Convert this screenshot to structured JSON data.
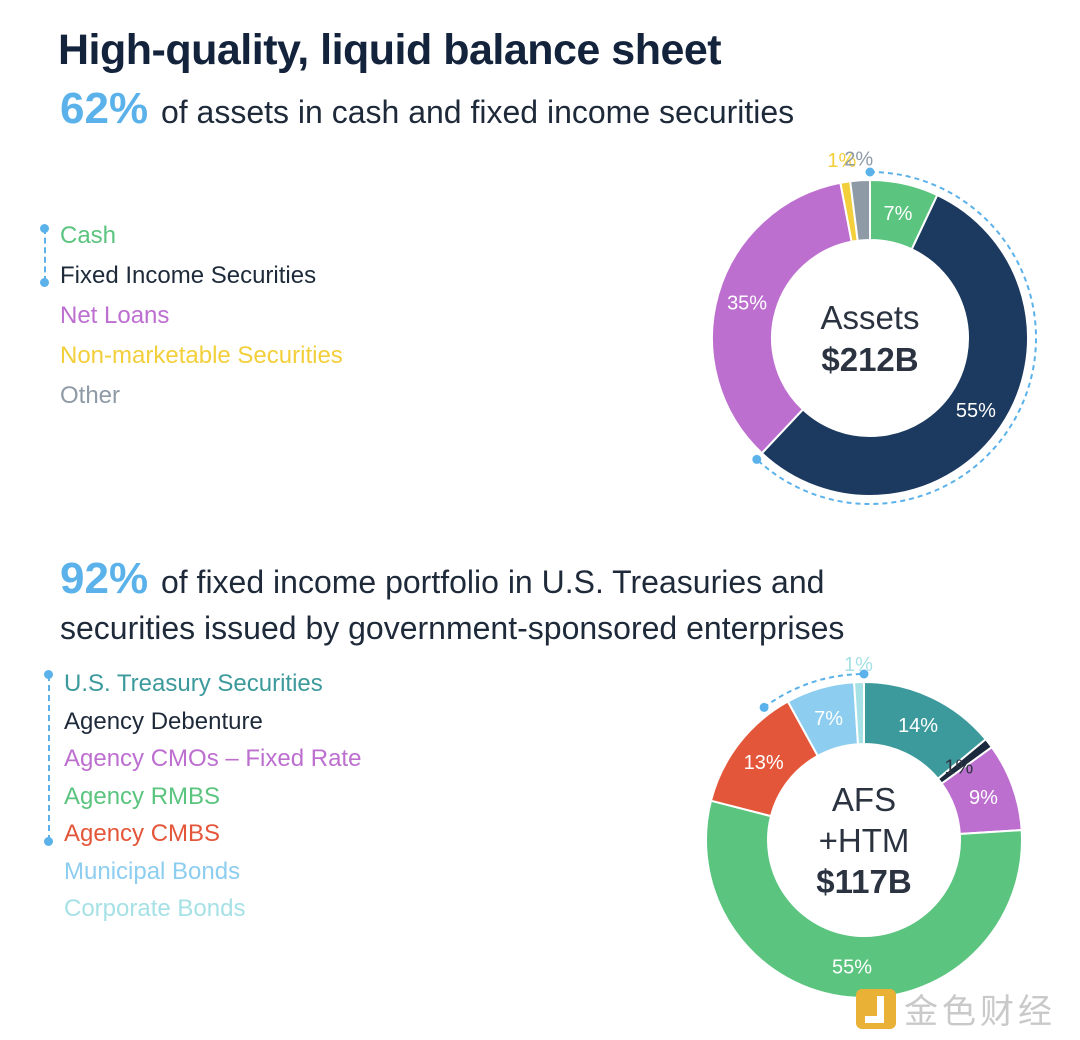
{
  "title": "High-quality, liquid balance sheet",
  "section1": {
    "highlight": "62%",
    "text": "of assets in cash and fixed income securities"
  },
  "section2": {
    "highlight": "92%",
    "text_line1": "of fixed income portfolio in U.S. Treasuries and",
    "text_line2": "securities issued by government-sponsored enterprises"
  },
  "watermark": {
    "text": "金色财经",
    "icon": "jinse-logo-icon"
  },
  "chart_data": [
    {
      "type": "pie",
      "center_label": [
        "Assets",
        "$212B"
      ],
      "slices": [
        {
          "label": "Cash",
          "value": 7,
          "display": "7%",
          "color": "#5bc47f"
        },
        {
          "label": "Fixed Income Securities",
          "value": 55,
          "display": "55%",
          "color": "#1c3a60"
        },
        {
          "label": "Net Loans",
          "value": 35,
          "display": "35%",
          "color": "#bd6fd0"
        },
        {
          "label": "Non-marketable Securities",
          "value": 1,
          "display": "1%",
          "color": "#f2cf3b"
        },
        {
          "label": "Other",
          "value": 2,
          "display": "2%",
          "color": "#8e9aa6"
        }
      ]
    },
    {
      "type": "pie",
      "center_label": [
        "AFS",
        "+HTM",
        "$117B"
      ],
      "slices": [
        {
          "label": "U.S. Treasury Securities",
          "value": 14,
          "display": "14%",
          "color": "#3d9a9c"
        },
        {
          "label": "Agency Debenture",
          "value": 1,
          "display": "1%",
          "color": "#1c2a3e"
        },
        {
          "label": "Agency CMOs – Fixed Rate",
          "value": 9,
          "display": "9%",
          "color": "#bd6fd0"
        },
        {
          "label": "Agency RMBS",
          "value": 55,
          "display": "55%",
          "color": "#5bc47f"
        },
        {
          "label": "Agency CMBS",
          "value": 13,
          "display": "13%",
          "color": "#e4563a"
        },
        {
          "label": "Municipal Bonds",
          "value": 7,
          "display": "7%",
          "color": "#8dcdf0"
        },
        {
          "label": "Corporate Bonds",
          "value": 1,
          "display": "1%",
          "color": "#a6e1e6"
        }
      ]
    }
  ]
}
